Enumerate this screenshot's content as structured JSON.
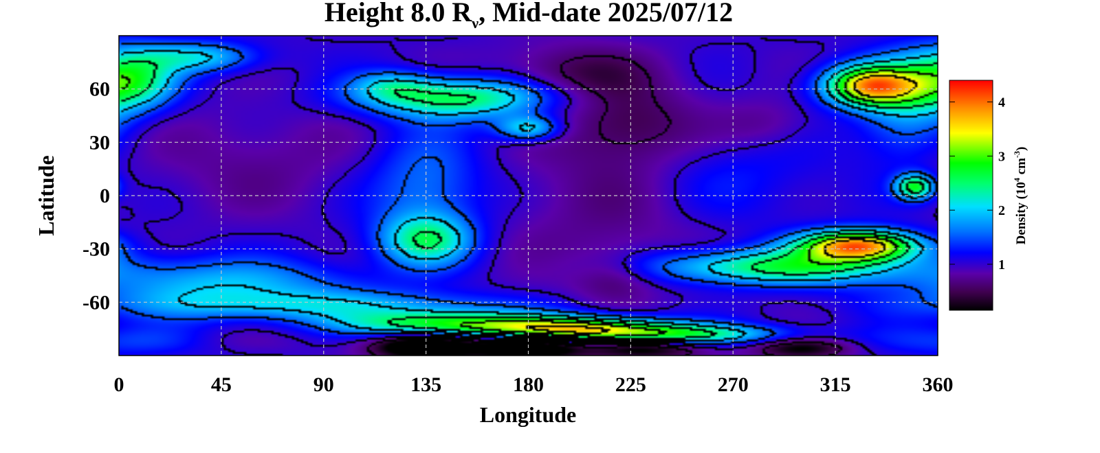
{
  "chart_data": {
    "type": "heatmap",
    "title": {
      "prefix": "Height 8.0 R",
      "subscript": "ν",
      "suffix": ", Mid-date 2025/07/12"
    },
    "xlabel": "Longitude",
    "ylabel": "Latitude",
    "xlim": [
      0,
      360
    ],
    "ylim": [
      -90,
      90
    ],
    "x_ticks": [
      0,
      45,
      90,
      135,
      180,
      225,
      270,
      315,
      360
    ],
    "y_ticks": [
      60,
      30,
      0,
      -30,
      -60
    ],
    "y_tick_labels": [
      "60",
      "30",
      "0",
      "-30",
      "-60"
    ],
    "grid": true,
    "colorbar": {
      "label_prefix": "Density (10",
      "label_exp1": "4",
      "label_mid": " cm",
      "label_exp2": "-3",
      "label_suffix": ")",
      "range": [
        0.15,
        4.4
      ],
      "ticks": [
        1,
        2,
        3,
        4
      ],
      "colors": [
        "#000000",
        "#400050",
        "#5a00aa",
        "#0000ff",
        "#0070ff",
        "#00dfff",
        "#00ff70",
        "#00ff00",
        "#ffff00",
        "#ff8c00",
        "#ff0000"
      ],
      "color_stops": [
        0.0,
        0.08,
        0.16,
        0.25,
        0.34,
        0.45,
        0.55,
        0.64,
        0.77,
        0.88,
        1.0
      ]
    },
    "background_density": 1.0,
    "features": [
      {
        "lon": 5,
        "lat": 65,
        "sigma_lon": 14,
        "sigma_lat": 12,
        "amp": 1.6
      },
      {
        "lon": 35,
        "lat": 78,
        "sigma_lon": 18,
        "sigma_lat": 6,
        "amp": 1.0
      },
      {
        "lon": 60,
        "lat": 20,
        "sigma_lon": 40,
        "sigma_lat": 22,
        "amp": -0.25
      },
      {
        "lon": 150,
        "lat": 55,
        "sigma_lon": 30,
        "sigma_lat": 8,
        "amp": 1.6
      },
      {
        "lon": 120,
        "lat": 62,
        "sigma_lon": 12,
        "sigma_lat": 6,
        "amp": 0.7
      },
      {
        "lon": 180,
        "lat": 38,
        "sigma_lon": 10,
        "sigma_lat": 5,
        "amp": 1.2
      },
      {
        "lon": 200,
        "lat": 68,
        "sigma_lon": 25,
        "sigma_lat": 12,
        "amp": -0.5
      },
      {
        "lon": 225,
        "lat": 40,
        "sigma_lon": 20,
        "sigma_lat": 15,
        "amp": -0.45
      },
      {
        "lon": 285,
        "lat": 40,
        "sigma_lon": 15,
        "sigma_lat": 10,
        "amp": -0.3
      },
      {
        "lon": 330,
        "lat": 62,
        "sigma_lon": 14,
        "sigma_lat": 8,
        "amp": 2.6
      },
      {
        "lon": 345,
        "lat": 50,
        "sigma_lon": 14,
        "sigma_lat": 20,
        "amp": 0.8
      },
      {
        "lon": 350,
        "lat": 5,
        "sigma_lon": 6,
        "sigma_lat": 5,
        "amp": 1.7
      },
      {
        "lon": 135,
        "lat": 5,
        "sigma_lon": 18,
        "sigma_lat": 22,
        "amp": 0.7
      },
      {
        "lon": 135,
        "lat": -25,
        "sigma_lon": 14,
        "sigma_lat": 10,
        "amp": 1.3
      },
      {
        "lon": 215,
        "lat": -5,
        "sigma_lon": 35,
        "sigma_lat": 40,
        "amp": -0.3
      },
      {
        "lon": 218,
        "lat": -45,
        "sigma_lon": 12,
        "sigma_lat": 10,
        "amp": -0.35
      },
      {
        "lon": 270,
        "lat": 10,
        "sigma_lon": 30,
        "sigma_lat": 20,
        "amp": 0.3
      },
      {
        "lon": 325,
        "lat": -28,
        "sigma_lon": 18,
        "sigma_lat": 6,
        "amp": 2.9
      },
      {
        "lon": 290,
        "lat": -40,
        "sigma_lon": 40,
        "sigma_lat": 7,
        "amp": 1.6
      },
      {
        "lon": 45,
        "lat": -50,
        "sigma_lon": 40,
        "sigma_lat": 10,
        "amp": 0.9
      },
      {
        "lon": 90,
        "lat": -62,
        "sigma_lon": 60,
        "sigma_lat": 6,
        "amp": 0.8
      },
      {
        "lon": 140,
        "lat": -72,
        "sigma_lon": 30,
        "sigma_lat": 5,
        "amp": 1.6
      },
      {
        "lon": 200,
        "lat": -75,
        "sigma_lon": 30,
        "sigma_lat": 5,
        "amp": 2.4
      },
      {
        "lon": 250,
        "lat": -78,
        "sigma_lon": 30,
        "sigma_lat": 4,
        "amp": 1.3
      },
      {
        "lon": 135,
        "lat": -85,
        "sigma_lon": 16,
        "sigma_lat": 5,
        "amp": -1.6
      },
      {
        "lon": 180,
        "lat": -85,
        "sigma_lon": 16,
        "sigma_lat": 5,
        "amp": -1.6
      },
      {
        "lon": 230,
        "lat": -86,
        "sigma_lon": 18,
        "sigma_lat": 4,
        "amp": -1.0
      },
      {
        "lon": 300,
        "lat": -86,
        "sigma_lon": 15,
        "sigma_lat": 4,
        "amp": -0.9
      },
      {
        "lon": 10,
        "lat": -82,
        "sigma_lon": 30,
        "sigma_lat": 6,
        "amp": 0.4
      },
      {
        "lon": 50,
        "lat": -82,
        "sigma_lon": 20,
        "sigma_lat": 5,
        "amp": -0.2
      }
    ]
  }
}
